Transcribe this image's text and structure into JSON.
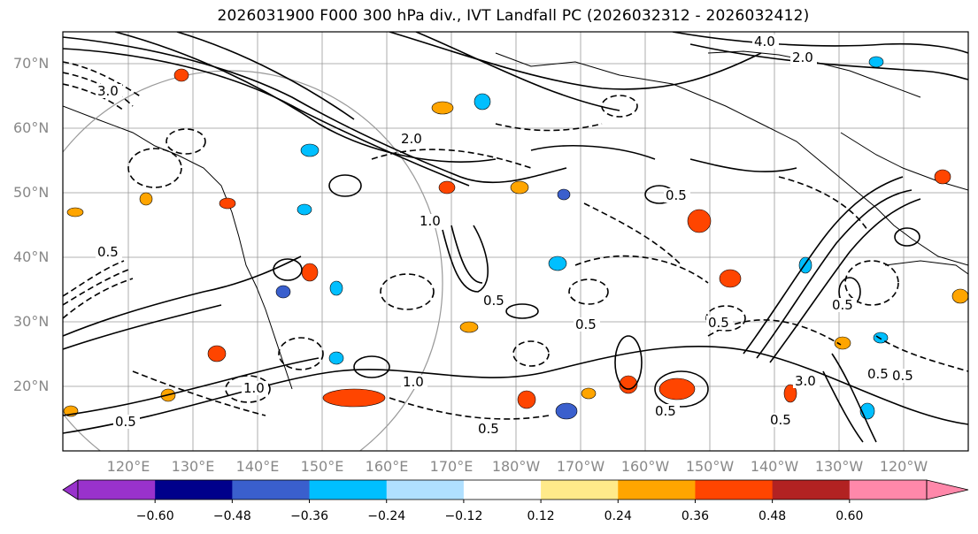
{
  "title": "2026031900 F000 300 hPa div., IVT Landfall PC (2026032312 - 2026032412)",
  "lat_labels": [
    "70°N",
    "60°N",
    "50°N",
    "40°N",
    "30°N",
    "20°N"
  ],
  "lon_labels": [
    "120°E",
    "130°E",
    "140°E",
    "150°E",
    "160°E",
    "170°E",
    "180°W",
    "170°W",
    "160°W",
    "150°W",
    "140°W",
    "130°W",
    "120°W"
  ],
  "contour_labels": [
    "4.0",
    "2.0",
    "3.0",
    "1.0",
    "0.5",
    "0.5",
    "2.0",
    "0.5",
    "1.0",
    "0.5",
    "0.5",
    "0.5",
    "0.5",
    "1.0",
    "0.5",
    "0.5",
    "0.5",
    "3.0",
    "0.5",
    "0.5"
  ],
  "colorbar": {
    "colors": [
      "#9932cc",
      "#00008b",
      "#3a5fcd",
      "#00bfff",
      "#b0e0ff",
      "#ffffff",
      "#ffea8a",
      "#ffa500",
      "#ff4500",
      "#b22222",
      "#ff88aa"
    ],
    "ticks": [
      "−0.60",
      "−0.48",
      "−0.36",
      "−0.24",
      "−0.12",
      "0.12",
      "0.24",
      "0.36",
      "0.48",
      "0.60"
    ]
  }
}
